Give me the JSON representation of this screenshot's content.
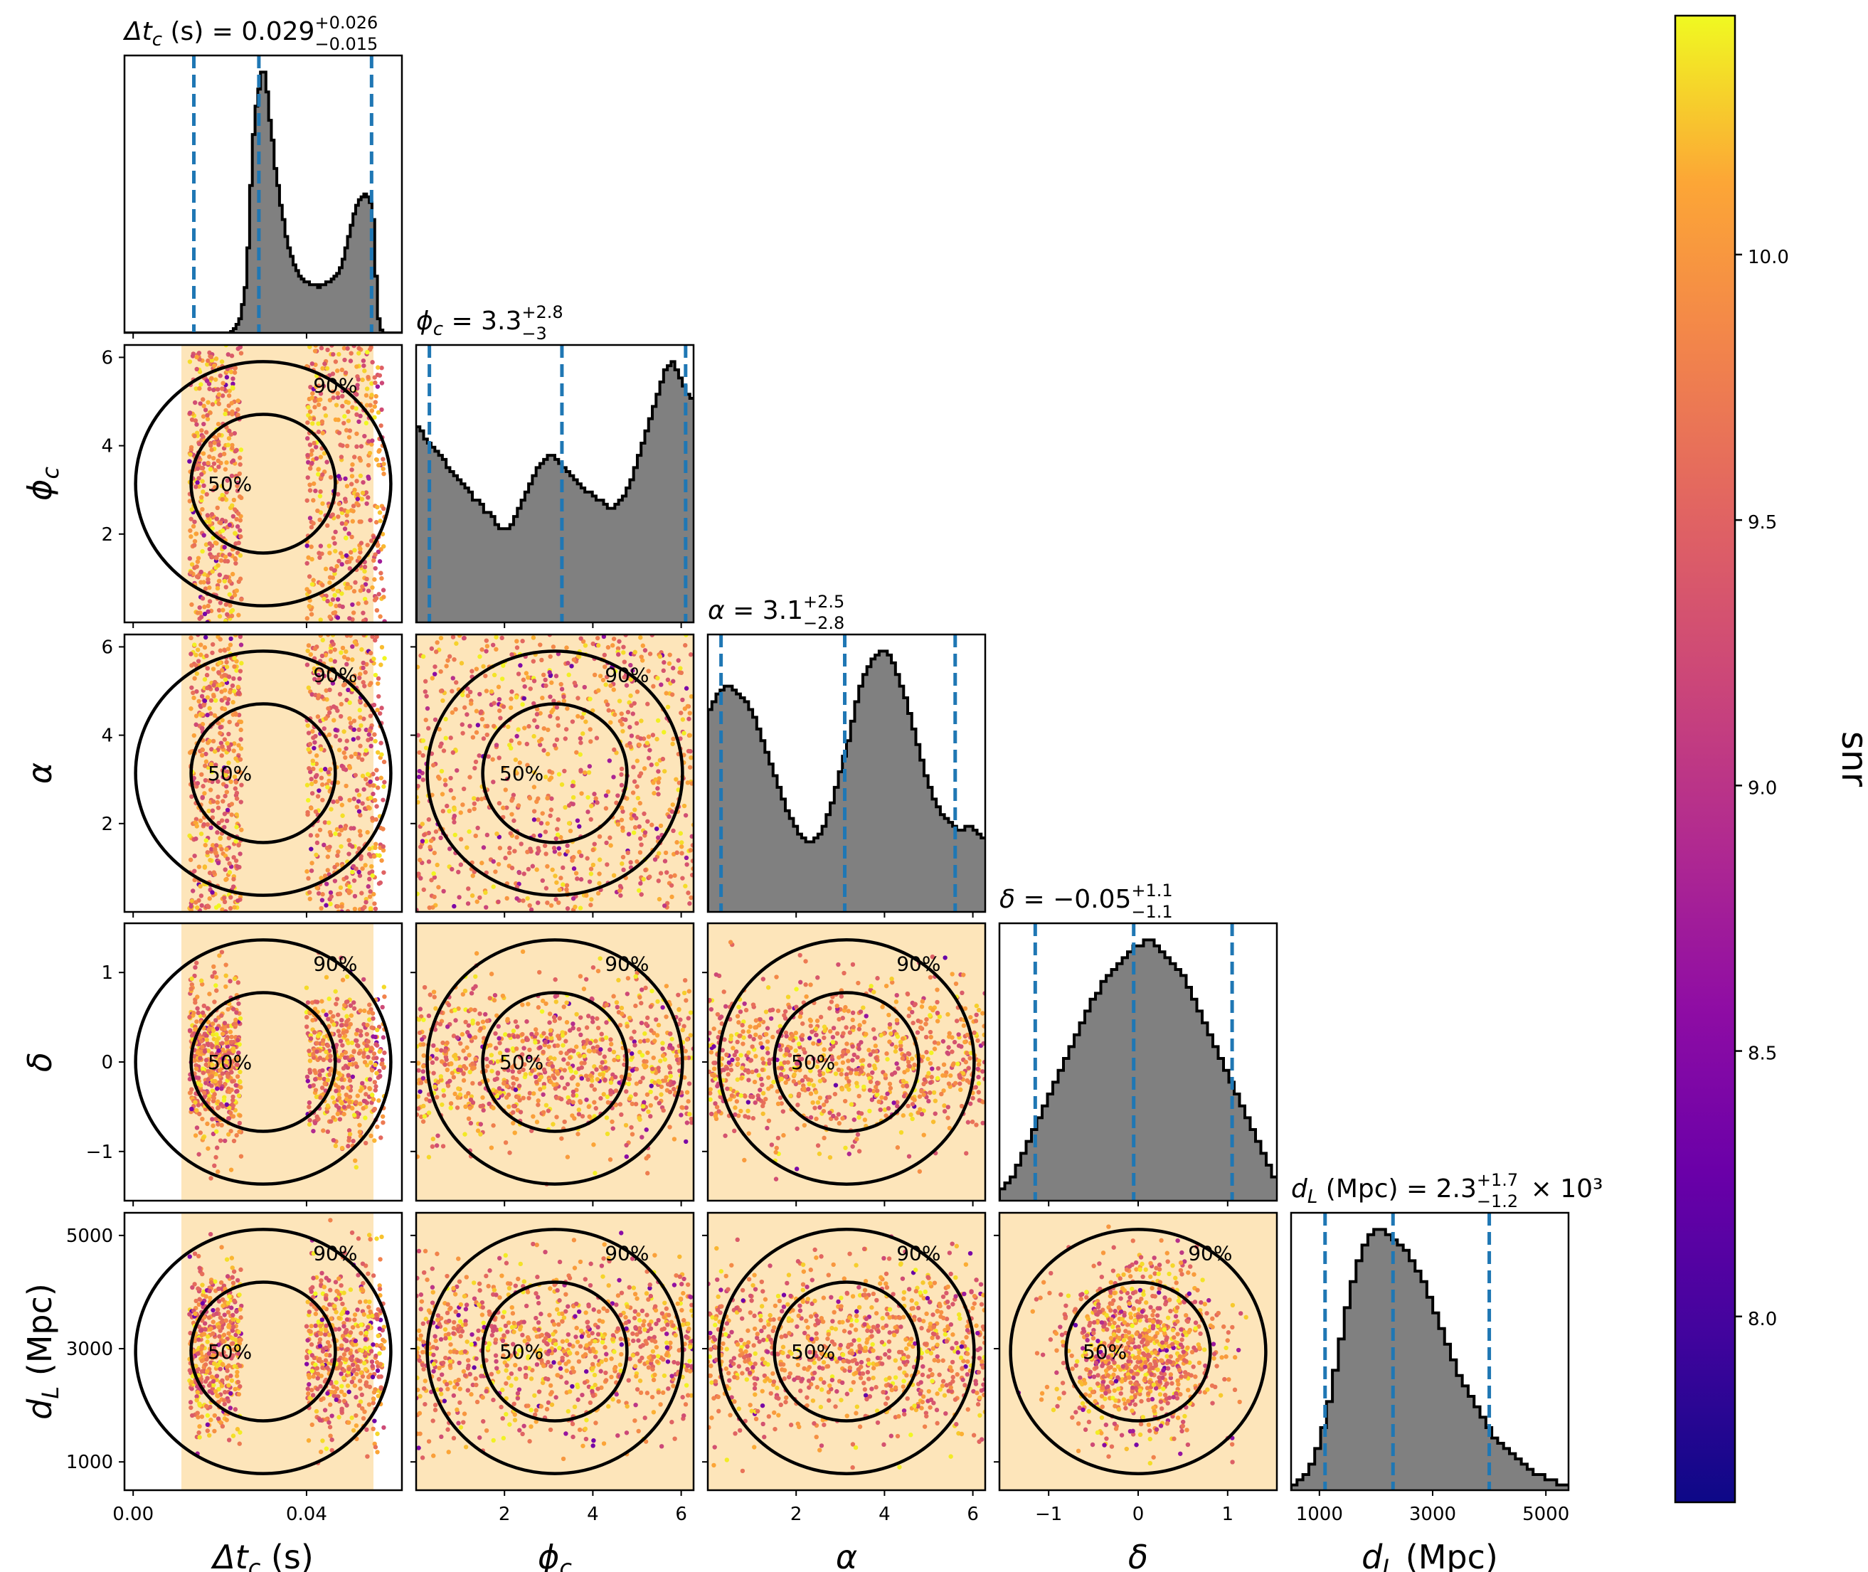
{
  "chart_data": {
    "type": "corner",
    "parameters": [
      {
        "key": "dtc",
        "label": "Δt_c (s)",
        "range": [
          -0.002,
          0.062
        ],
        "ticks": [
          0.0,
          0.04
        ],
        "tick_labels": [
          "0.00",
          "0.04"
        ]
      },
      {
        "key": "phic",
        "label": "ϕ_c",
        "range": [
          0.0,
          6.28
        ],
        "ticks": [
          2,
          4,
          6
        ],
        "tick_labels": [
          "2",
          "4",
          "6"
        ]
      },
      {
        "key": "alpha",
        "label": "α",
        "range": [
          0.0,
          6.28
        ],
        "ticks": [
          2,
          4,
          6
        ],
        "tick_labels": [
          "2",
          "4",
          "6"
        ]
      },
      {
        "key": "delta",
        "label": "δ",
        "range": [
          -1.55,
          1.55
        ],
        "ticks": [
          -1,
          0,
          1
        ],
        "tick_labels": [
          "−1",
          "0",
          "1"
        ]
      },
      {
        "key": "dl",
        "label": "d_L (Mpc)",
        "range": [
          500,
          5400
        ],
        "ticks": [
          1000,
          3000,
          5000
        ],
        "tick_labels": [
          "1000",
          "3000",
          "5000"
        ]
      }
    ],
    "marginals": [
      {
        "key": "dtc",
        "title": "Δt_c (s) = 0.029 +0.026 −0.015",
        "title_parts": {
          "prefix": "Δt",
          "sub": "c",
          "suffix": " (s) = 0.029",
          "sup": "+0.026",
          "low": "−0.015",
          "tail": ""
        },
        "quantiles": [
          0.014,
          0.029,
          0.055
        ],
        "bins_range": [
          -0.002,
          0.062
        ],
        "counts": [
          0,
          0,
          0,
          0,
          0,
          0,
          0,
          0,
          0,
          0,
          0,
          0,
          0,
          0,
          0,
          0,
          0,
          0,
          0,
          0,
          0,
          0,
          0,
          0,
          0,
          0,
          0,
          0,
          0,
          0,
          0,
          0,
          0,
          0,
          0,
          0,
          0,
          0,
          0,
          0.5,
          1.5,
          3,
          5,
          10,
          16,
          30,
          52,
          70,
          80,
          86,
          92,
          92,
          85,
          75,
          68,
          58,
          52,
          45,
          40,
          34,
          30,
          27,
          24,
          22,
          20,
          19,
          18,
          18,
          17,
          17,
          17,
          16,
          17,
          17,
          18,
          18,
          19,
          20,
          21,
          23,
          26,
          30,
          34,
          38,
          42,
          45,
          47,
          48,
          49,
          48,
          46,
          40,
          20,
          5,
          1,
          0,
          0,
          0,
          0,
          0,
          0,
          0
        ]
      },
      {
        "key": "phic",
        "title": "ϕ_c = 3.3 +2.8 −3",
        "title_parts": {
          "prefix": "ϕ",
          "sub": "c",
          "suffix": " = 3.3",
          "sup": "+2.8",
          "low": "−3",
          "tail": ""
        },
        "quantiles": [
          0.3,
          3.3,
          6.1
        ],
        "bins_range": [
          0.0,
          6.28
        ],
        "counts": [
          48,
          47,
          45,
          44,
          43,
          42,
          41,
          40,
          38,
          37,
          36,
          35,
          34,
          33,
          32,
          30,
          30,
          29,
          27,
          27,
          26,
          24,
          23,
          23,
          23,
          24,
          26,
          28,
          30,
          32,
          34,
          36,
          38,
          39,
          40,
          41,
          41,
          40,
          39,
          38,
          37,
          36,
          35,
          34,
          33,
          32,
          32,
          31,
          30,
          30,
          29,
          28,
          28,
          29,
          30,
          31,
          33,
          35,
          38,
          41,
          44,
          47,
          50,
          53,
          56,
          59,
          62,
          63,
          64,
          62,
          60,
          58,
          56,
          55
        ]
      },
      {
        "key": "alpha",
        "title": "α = 3.1 +2.5 −2.8",
        "title_parts": {
          "prefix": "α",
          "sub": "",
          "suffix": " = 3.1",
          "sup": "+2.5",
          "low": "−2.8",
          "tail": ""
        },
        "quantiles": [
          0.3,
          3.1,
          5.6
        ],
        "bins_range": [
          0.0,
          6.28
        ],
        "counts": [
          52,
          54,
          56,
          57,
          58,
          58,
          57,
          56,
          55,
          54,
          52,
          50,
          47,
          44,
          41,
          38,
          35,
          32,
          29,
          26,
          24,
          22,
          20,
          19,
          18,
          18,
          19,
          20,
          22,
          25,
          28,
          32,
          36,
          40,
          44,
          49,
          54,
          58,
          61,
          63,
          65,
          66,
          67,
          67,
          66,
          64,
          61,
          58,
          55,
          51,
          47,
          43,
          39,
          35,
          32,
          29,
          27,
          25,
          24,
          23,
          22,
          21,
          21,
          22,
          22,
          21,
          20,
          19
        ]
      },
      {
        "key": "delta",
        "title": "δ = −0.05 +1.1 −1.1",
        "title_parts": {
          "prefix": "δ",
          "sub": "",
          "suffix": " = −0.05",
          "sup": "+1.1",
          "low": "−1.1",
          "tail": ""
        },
        "quantiles": [
          -1.15,
          -0.05,
          1.05
        ],
        "bins_range": [
          -1.55,
          1.55
        ],
        "counts": [
          2,
          3,
          4,
          6,
          8,
          10,
          12,
          14,
          16,
          18,
          20,
          22,
          24,
          26,
          28,
          30,
          32,
          34,
          35,
          37,
          38,
          39,
          40,
          41,
          42,
          43,
          43,
          44,
          44,
          43,
          42,
          41,
          40,
          39,
          38,
          36,
          34,
          32,
          30,
          28,
          26,
          24,
          22,
          20,
          18,
          16,
          14,
          12,
          10,
          8,
          6,
          4
        ]
      },
      {
        "key": "dl",
        "title": "d_L (Mpc) = 2.3 +1.7 −1.2 × 10³",
        "title_parts": {
          "prefix": "d",
          "sub": "L",
          "suffix": " (Mpc) = 2.3",
          "sup": "+1.7",
          "low": "−1.2",
          "tail": " × 10³"
        },
        "quantiles": [
          1100,
          2300,
          4000
        ],
        "bins_range": [
          500,
          5400
        ],
        "counts": [
          1,
          2,
          3,
          5,
          8,
          12,
          17,
          23,
          29,
          35,
          40,
          44,
          47,
          49,
          50,
          50,
          49,
          48,
          47,
          46,
          44,
          42,
          40,
          37,
          34,
          31,
          28,
          25,
          22,
          20,
          18,
          16,
          14,
          12,
          10,
          9,
          8,
          7,
          6,
          5,
          4,
          3,
          3,
          2,
          2,
          1,
          1
        ]
      }
    ],
    "contour_levels": [
      "50%",
      "90%"
    ],
    "colorbar": {
      "label": "snr",
      "range": [
        7.65,
        10.45
      ],
      "ticks": [
        8.0,
        8.5,
        9.0,
        9.5,
        10.0
      ],
      "tick_labels": [
        "8.0",
        "8.5",
        "9.0",
        "9.5",
        "10.0"
      ],
      "colormap": "plasma"
    }
  },
  "colors": {
    "hist_fill": "#808080",
    "hist_edge": "#000000",
    "quantile_line": "#1f77b4",
    "contour": "#000000"
  }
}
